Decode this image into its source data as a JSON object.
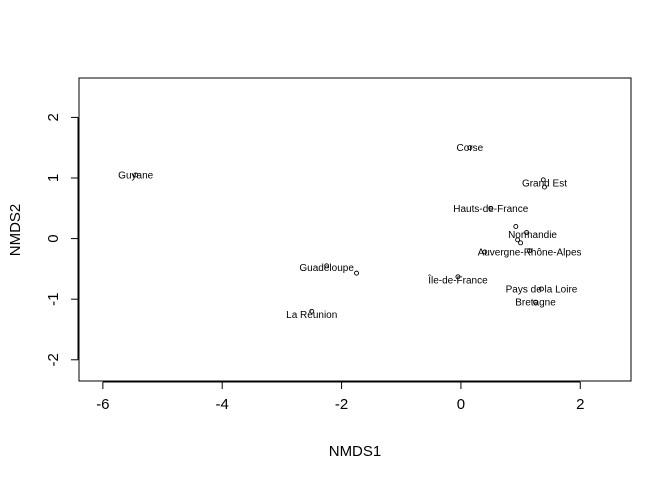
{
  "chart_data": {
    "type": "scatter",
    "title": "",
    "xlabel": "NMDS1",
    "ylabel": "NMDS2",
    "xlim": [
      -6.4,
      2.85
    ],
    "ylim": [
      -2.35,
      2.65
    ],
    "xticks": [
      -6,
      -4,
      -2,
      0,
      2
    ],
    "yticks": [
      -2,
      -1,
      0,
      1,
      2
    ],
    "xtick_labels": [
      "-6",
      "-4",
      "-2",
      "0",
      "2"
    ],
    "ytick_labels": [
      "-2",
      "-1",
      "0",
      "1",
      "2"
    ],
    "grid": false,
    "legend": "none",
    "points": [
      {
        "x": -5.45,
        "y": 1.05
      },
      {
        "x": 0.15,
        "y": 1.5
      },
      {
        "x": 1.38,
        "y": 0.97
      },
      {
        "x": 1.4,
        "y": 0.85
      },
      {
        "x": 0.5,
        "y": 0.5
      },
      {
        "x": 0.92,
        "y": 0.2
      },
      {
        "x": 1.1,
        "y": 0.1
      },
      {
        "x": 0.95,
        "y": -0.02
      },
      {
        "x": 1.0,
        "y": -0.07
      },
      {
        "x": 0.4,
        "y": -0.22
      },
      {
        "x": 1.15,
        "y": -0.2
      },
      {
        "x": -2.25,
        "y": -0.45
      },
      {
        "x": -1.75,
        "y": -0.57
      },
      {
        "x": -0.05,
        "y": -0.63
      },
      {
        "x": 1.35,
        "y": -0.83
      },
      {
        "x": 1.25,
        "y": -1.05
      },
      {
        "x": -2.5,
        "y": -1.2
      }
    ],
    "labels": [
      {
        "text": "Guyane",
        "x": -5.45,
        "y": 1.05
      },
      {
        "text": "Corse",
        "x": 0.15,
        "y": 1.5
      },
      {
        "text": "Grand Est",
        "x": 1.4,
        "y": 0.92
      },
      {
        "text": "Hauts-de-France",
        "x": 0.5,
        "y": 0.5
      },
      {
        "text": "Normandie",
        "x": 1.2,
        "y": 0.07
      },
      {
        "text": "Auvergne-Rhône-Alpes",
        "x": 1.15,
        "y": -0.22
      },
      {
        "text": "Guadeloupe",
        "x": -2.25,
        "y": -0.48
      },
      {
        "text": "Île-de-France",
        "x": -0.05,
        "y": -0.68
      },
      {
        "text": "Pays de la Loire",
        "x": 1.35,
        "y": -0.83
      },
      {
        "text": "Bretagne",
        "x": 1.25,
        "y": -1.05
      },
      {
        "text": "La Réunion",
        "x": -2.5,
        "y": -1.25
      }
    ]
  }
}
